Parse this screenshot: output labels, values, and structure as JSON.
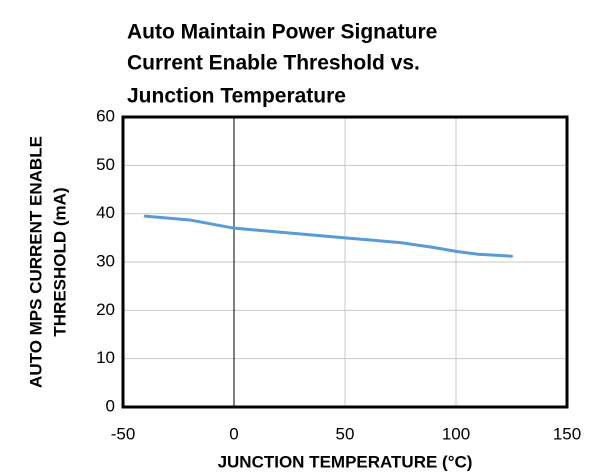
{
  "chart_data": {
    "type": "line",
    "title": [
      "Auto Maintain Power Signature",
      "Current Enable Threshold vs.",
      "Junction Temperature"
    ],
    "y_label": [
      "AUTO MPS CURRENT ENABLE",
      "THRESHOLD (mA)"
    ],
    "x_label": "JUNCTION TEMPERATURE (°C)",
    "x": [
      -40,
      -20,
      0,
      25,
      50,
      75,
      90,
      100,
      110,
      125
    ],
    "series": [
      {
        "name": "Threshold",
        "color": "#5b9bd5",
        "values": [
          39.5,
          38.7,
          37,
          36,
          35,
          34,
          33,
          32.2,
          31.6,
          31.2
        ]
      }
    ],
    "xlim": [
      -50,
      150
    ],
    "xticks": [
      -50,
      0,
      50,
      100,
      150
    ],
    "ylim": [
      0,
      60
    ],
    "yticks": [
      0,
      10,
      20,
      30,
      40,
      50,
      60
    ],
    "grid": true
  }
}
